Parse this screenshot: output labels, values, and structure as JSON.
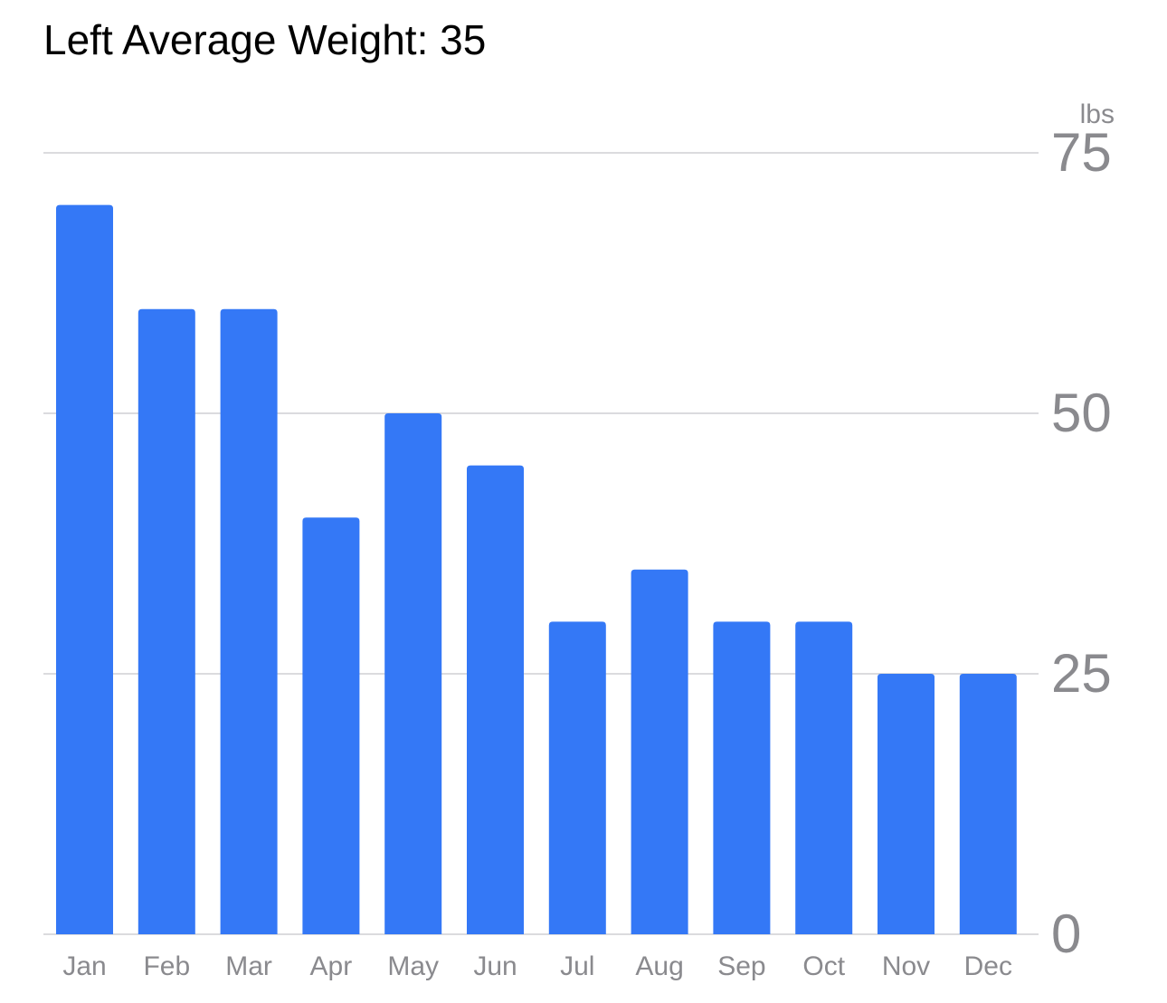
{
  "chart_data": {
    "type": "bar",
    "title": "Left Average Weight: 35",
    "unit": "lbs",
    "categories": [
      "Jan",
      "Feb",
      "Mar",
      "Apr",
      "May",
      "Jun",
      "Jul",
      "Aug",
      "Sep",
      "Oct",
      "Nov",
      "Dec"
    ],
    "values": [
      70,
      60,
      60,
      40,
      50,
      45,
      30,
      35,
      30,
      30,
      25,
      25
    ],
    "yticks": [
      0,
      25,
      50,
      75
    ],
    "ylim": [
      0,
      75
    ],
    "bar_color": "#3478f6",
    "grid": true
  }
}
